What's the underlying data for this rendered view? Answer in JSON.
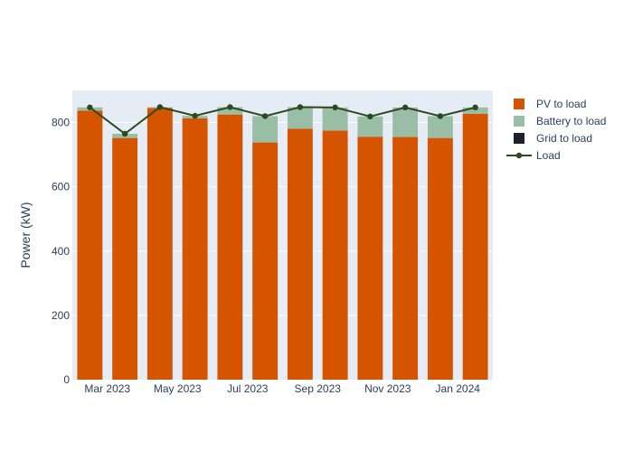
{
  "chart_data": {
    "type": "bar",
    "stacked": true,
    "title": "",
    "xlabel": "",
    "ylabel": "Power (kW)",
    "ylim": [
      0,
      900
    ],
    "yticks": [
      0,
      200,
      400,
      600,
      800
    ],
    "xticks": [
      "Mar 2023",
      "May 2023",
      "Jul 2023",
      "Sep 2023",
      "Nov 2023",
      "Jan 2024"
    ],
    "xtick_months": [
      1,
      3,
      5,
      7,
      9,
      11
    ],
    "x": [
      "2023-02",
      "2023-03",
      "2023-04",
      "2023-05",
      "2023-06",
      "2023-07",
      "2023-08",
      "2023-09",
      "2023-10",
      "2023-11",
      "2023-12",
      "2024-01"
    ],
    "grid": true,
    "legend_position": "top-right",
    "series": [
      {
        "name": "PV to load",
        "kind": "bar",
        "color": "#d55400",
        "values": [
          837,
          752,
          845,
          813,
          825,
          738,
          781,
          775,
          756,
          755,
          752,
          827
        ]
      },
      {
        "name": "Battery to load",
        "kind": "bar",
        "color": "#9abda5",
        "values": [
          10,
          13,
          3,
          8,
          23,
          82,
          67,
          72,
          63,
          92,
          68,
          20
        ]
      },
      {
        "name": "Grid to load",
        "kind": "bar",
        "color": "#1f1f2e",
        "values": [
          0,
          0,
          0,
          0,
          0,
          0,
          0,
          0,
          0,
          0,
          0,
          0
        ]
      },
      {
        "name": "Load",
        "kind": "line",
        "color": "#2d4a1e",
        "values": [
          847,
          765,
          848,
          821,
          848,
          820,
          848,
          847,
          819,
          847,
          820,
          847
        ]
      }
    ]
  }
}
